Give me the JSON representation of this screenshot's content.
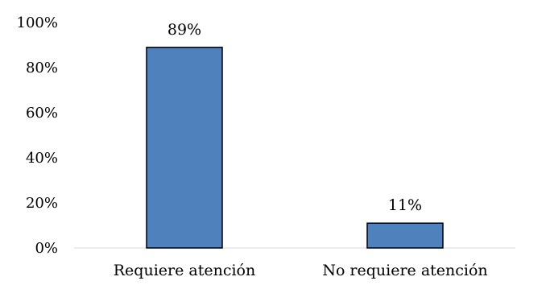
{
  "chart_data": {
    "type": "bar",
    "categories": [
      "Requiere atención",
      "No requiere atención"
    ],
    "values": [
      89,
      11
    ],
    "data_labels": [
      "89%",
      "11%"
    ],
    "ylim": [
      0,
      100
    ],
    "yticks": [
      0,
      20,
      40,
      60,
      80,
      100
    ],
    "ytick_labels": [
      "0%",
      "20%",
      "40%",
      "60%",
      "80%",
      "100%"
    ],
    "title": "",
    "xlabel": "",
    "ylabel": "",
    "grid": false,
    "legend": "none",
    "colors": {
      "bar_fill": "#4f81bd",
      "bar_stroke": "#000000",
      "axis": "#d9d9d9"
    }
  }
}
